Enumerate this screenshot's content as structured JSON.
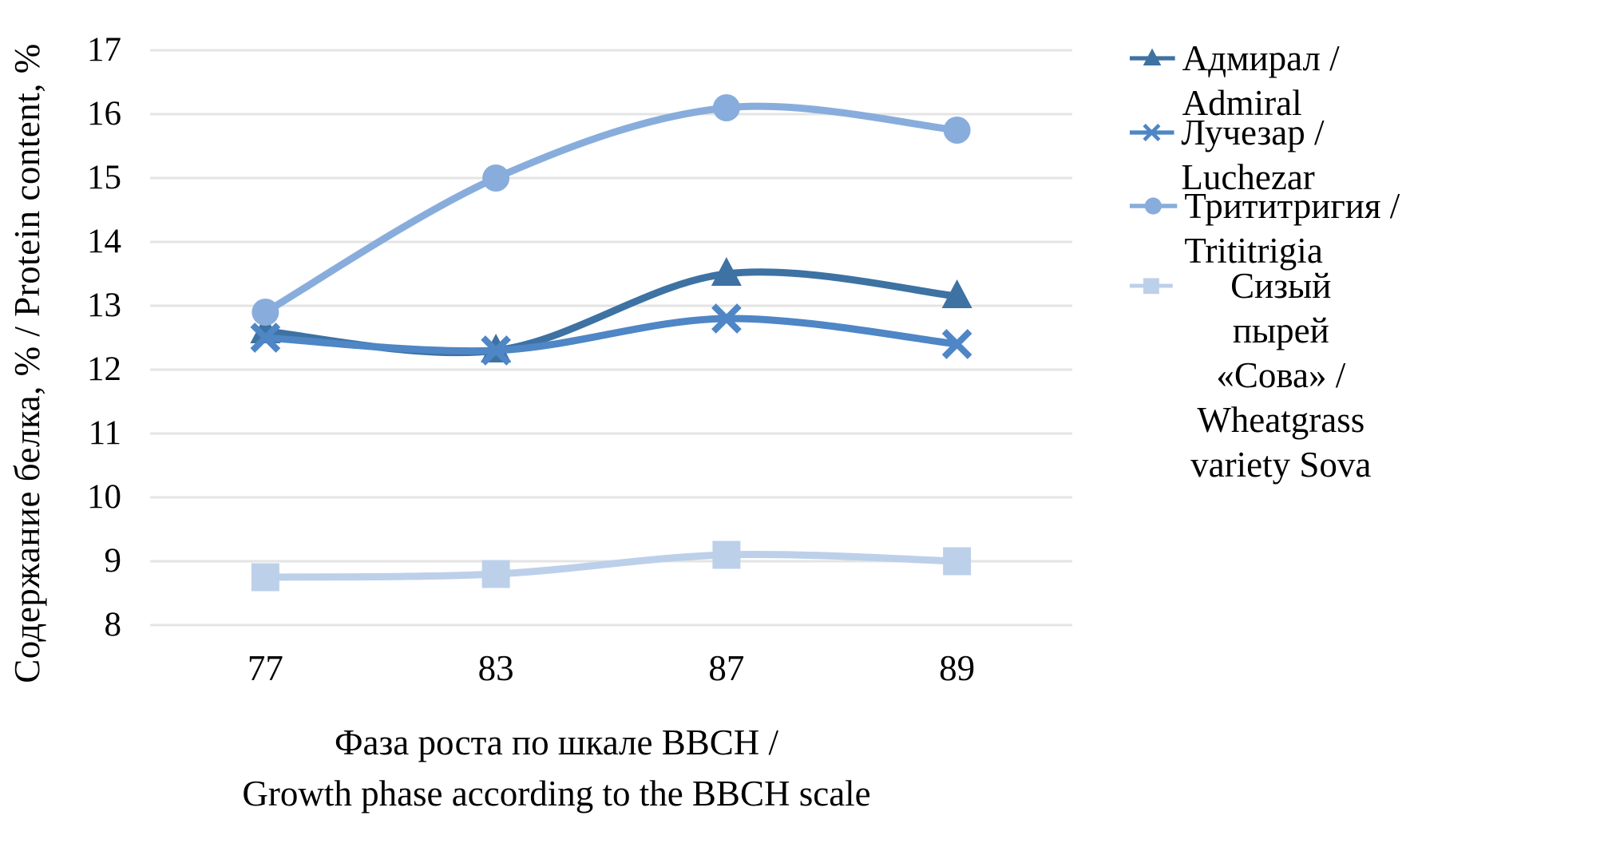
{
  "chart_data": {
    "type": "line",
    "categories": [
      "77",
      "83",
      "87",
      "89"
    ],
    "series": [
      {
        "name": "Адмирал / Admiral",
        "marker": "triangle",
        "color": "#3D72A3",
        "values": [
          12.6,
          12.3,
          13.5,
          13.15
        ]
      },
      {
        "name": "Лучезар / Luchezar",
        "marker": "x",
        "color": "#4E86C6",
        "values": [
          12.5,
          12.3,
          12.8,
          12.4
        ]
      },
      {
        "name": "Трититригия / Trititrigia",
        "marker": "circle",
        "color": "#88ADDC",
        "values": [
          12.9,
          15.0,
          16.1,
          15.75
        ]
      },
      {
        "name": "Сизый пырей «Сова» /\nWheatgrass variety Sova",
        "marker": "square",
        "color": "#BDD0EA",
        "values": [
          8.75,
          8.8,
          9.1,
          9.0
        ]
      }
    ],
    "ylabel": "Содержание белка, % / Protein content, %",
    "xlabel_line1": "Фаза роста по шкале BBCH /",
    "xlabel_line2": "Growth phase according to the BBCH scale",
    "y_ticks": [
      17,
      16,
      15,
      14,
      13,
      12,
      11,
      10,
      9,
      8
    ],
    "ylim": [
      8,
      17
    ],
    "grid": "horizontal",
    "gridline_color": "#E4E4E4",
    "legend_position": "right",
    "text_color": "#000000",
    "background": "#FFFFFF"
  }
}
